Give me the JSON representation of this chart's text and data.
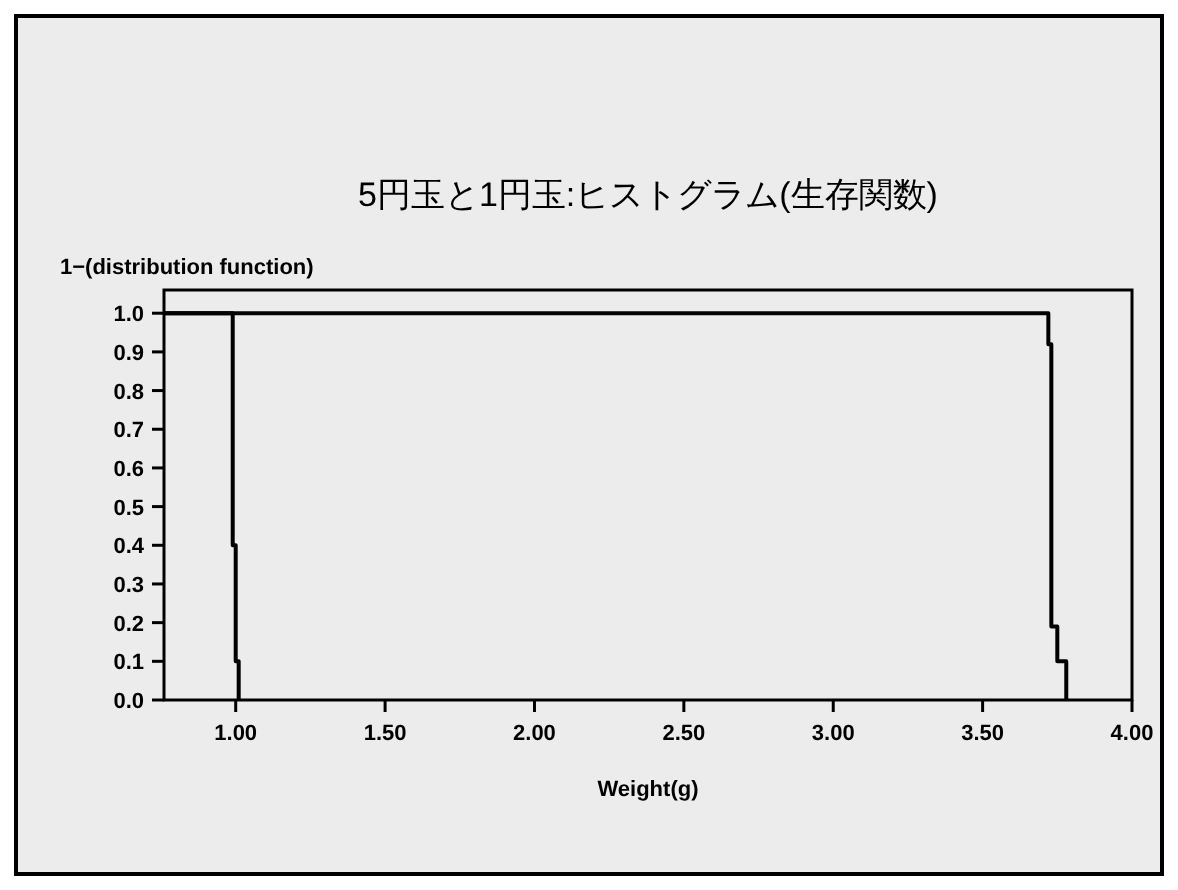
{
  "chart_data": {
    "type": "step",
    "title": "5円玉と1円玉:ヒストグラム(生存関数)",
    "xlabel": "Weight(g)",
    "ylabel": "1−(distribution function)",
    "series": [
      {
        "color": "#000000",
        "x": [
          0.76,
          0.99,
          1.0,
          1.01
        ],
        "values": [
          1.0,
          0.4,
          0.1,
          0.0
        ]
      },
      {
        "color": "#000000",
        "x": [
          0.76,
          3.72,
          3.73,
          3.75,
          3.78
        ],
        "values": [
          1.0,
          0.92,
          0.19,
          0.1,
          0.0
        ]
      }
    ],
    "xlim": [
      0.76,
      4.0
    ],
    "ylim": [
      0,
      1.06
    ],
    "xticks": [
      {
        "value": 1,
        "label": "1.00"
      },
      {
        "value": 1.5,
        "label": "1.50"
      },
      {
        "value": 2,
        "label": "2.00"
      },
      {
        "value": 2.5,
        "label": "2.50"
      },
      {
        "value": 3,
        "label": "3.00"
      },
      {
        "value": 3.5,
        "label": "3.50"
      },
      {
        "value": 4,
        "label": "4.00"
      }
    ],
    "yticks": [
      {
        "value": 0,
        "label": "0.0"
      },
      {
        "value": 0.1,
        "label": "0.1"
      },
      {
        "value": 0.2,
        "label": "0.2"
      },
      {
        "value": 0.3,
        "label": "0.3"
      },
      {
        "value": 0.4,
        "label": "0.4"
      },
      {
        "value": 0.5,
        "label": "0.5"
      },
      {
        "value": 0.6,
        "label": "0.6"
      },
      {
        "value": 0.7,
        "label": "0.7"
      },
      {
        "value": 0.8,
        "label": "0.8"
      },
      {
        "value": 0.9,
        "label": "0.9"
      },
      {
        "value": 1,
        "label": "1.0"
      }
    ],
    "grid": false,
    "marker": "none",
    "line_style": "solid"
  }
}
